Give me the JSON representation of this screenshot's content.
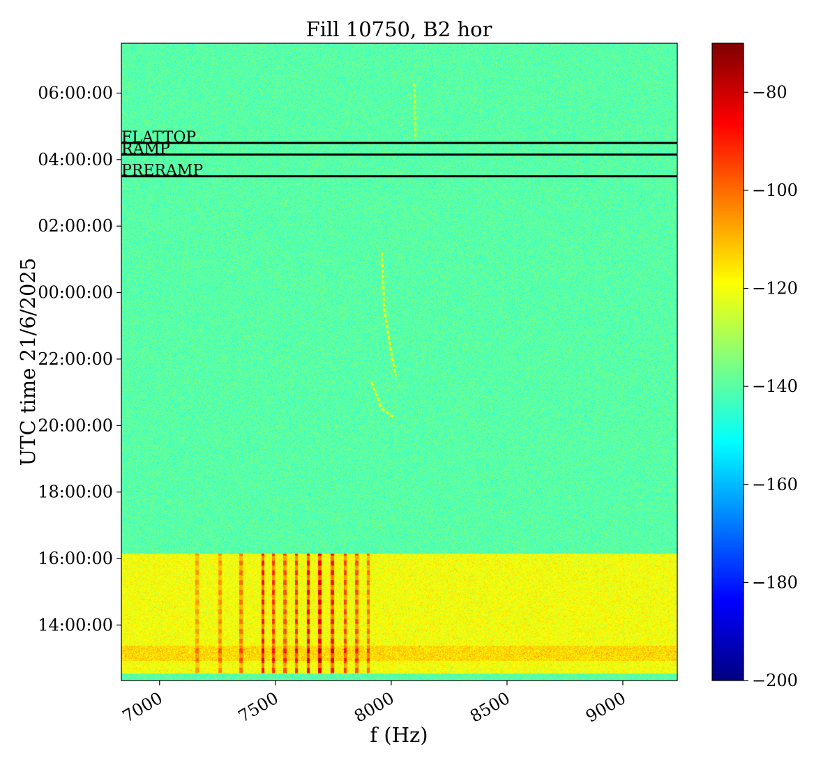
{
  "chart_data": {
    "type": "heatmap",
    "title": "Fill 10750, B2 hor",
    "xlabel": "f (Hz)",
    "ylabel": "UTC time 21/6/2025",
    "xlim": [
      6835,
      9235
    ],
    "ylim_hours": [
      12.33,
      31.5
    ],
    "x_ticks": [
      7000,
      7500,
      8000,
      8500,
      9000
    ],
    "y_ticks": [
      {
        "hour": 14,
        "label": "14:00:00"
      },
      {
        "hour": 16,
        "label": "16:00:00"
      },
      {
        "hour": 18,
        "label": "18:00:00"
      },
      {
        "hour": 20,
        "label": "20:00:00"
      },
      {
        "hour": 22,
        "label": "22:00:00"
      },
      {
        "hour": 24,
        "label": "00:00:00"
      },
      {
        "hour": 26,
        "label": "02:00:00"
      },
      {
        "hour": 28,
        "label": "04:00:00"
      },
      {
        "hour": 30,
        "label": "06:00:00"
      }
    ],
    "colormap": "jet",
    "colorbar": {
      "range": [
        -200,
        -70
      ],
      "ticks": [
        {
          "value": -80,
          "label": "−80"
        },
        {
          "value": -100,
          "label": "−100"
        },
        {
          "value": -120,
          "label": "−120"
        },
        {
          "value": -140,
          "label": "−140"
        },
        {
          "value": -160,
          "label": "−160"
        },
        {
          "value": -180,
          "label": "−180"
        },
        {
          "value": -200,
          "label": "−200"
        }
      ]
    },
    "background_level": -140,
    "active_block": {
      "hour_start": 12.55,
      "hour_end": 16.15,
      "level": -120
    },
    "active_block_lines": [
      {
        "freq": 7445,
        "level": -88
      },
      {
        "freq": 7490,
        "level": -92
      },
      {
        "freq": 7540,
        "level": -96
      },
      {
        "freq": 7590,
        "level": -92
      },
      {
        "freq": 7640,
        "level": -86
      },
      {
        "freq": 7690,
        "level": -84
      },
      {
        "freq": 7745,
        "level": -88
      },
      {
        "freq": 7800,
        "level": -94
      },
      {
        "freq": 7850,
        "level": -96
      },
      {
        "freq": 7900,
        "level": -100
      },
      {
        "freq": 7350,
        "level": -100
      },
      {
        "freq": 7260,
        "level": -104
      },
      {
        "freq": 7160,
        "level": -106
      }
    ],
    "phase_markers": [
      {
        "label": "FLATTOP",
        "hour": 28.5
      },
      {
        "label": "RAMP",
        "hour": 28.15
      },
      {
        "label": "PRERAMP",
        "hour": 27.5
      }
    ],
    "traces": [
      {
        "level": -120,
        "points": [
          {
            "freq": 7915,
            "hour": 21.3
          },
          {
            "freq": 7960,
            "hour": 20.5
          },
          {
            "freq": 8010,
            "hour": 20.25
          }
        ]
      },
      {
        "level": -118,
        "points": [
          {
            "freq": 7960,
            "hour": 25.2
          },
          {
            "freq": 7970,
            "hour": 23.5
          },
          {
            "freq": 8000,
            "hour": 22.2
          },
          {
            "freq": 8020,
            "hour": 21.5
          }
        ]
      },
      {
        "level": -124,
        "points": [
          {
            "freq": 8100,
            "hour": 30.3
          },
          {
            "freq": 8105,
            "hour": 28.6
          }
        ]
      }
    ]
  }
}
